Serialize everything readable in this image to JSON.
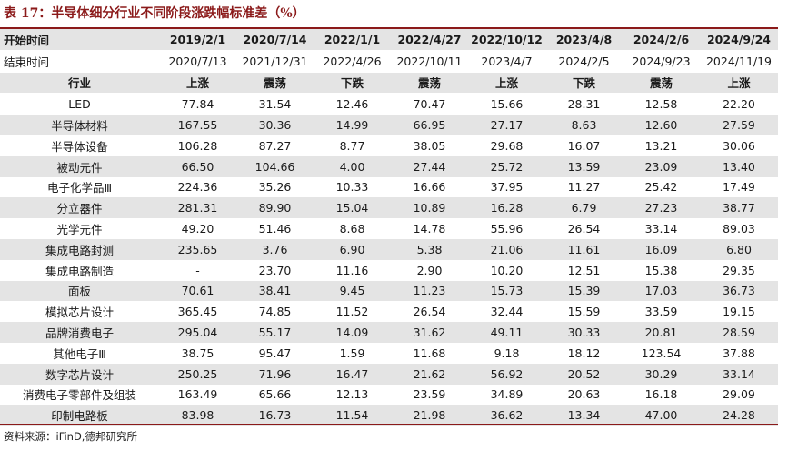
{
  "title": "表 17：半导体细分行业不同阶段涨跌幅标准差（%）",
  "columns": [
    {
      "start": "2019/2/1",
      "end": "2020/7/13",
      "trend": "上涨"
    },
    {
      "start": "2020/7/14",
      "end": "2021/12/31",
      "trend": "震荡"
    },
    {
      "start": "2022/1/1",
      "end": "2022/4/26",
      "trend": "下跌"
    },
    {
      "start": "2022/4/27",
      "end": "2022/10/11",
      "trend": "震荡"
    },
    {
      "start": "2022/10/12",
      "end": "2023/4/7",
      "trend": "上涨"
    },
    {
      "start": "2023/4/8",
      "end": "2024/2/5",
      "trend": "下跌"
    },
    {
      "start": "2024/2/6",
      "end": "2024/9/23",
      "trend": "震荡"
    },
    {
      "start": "2024/9/24",
      "end": "2024/11/19",
      "trend": "上涨"
    }
  ],
  "row_labels": {
    "start": "开始时间",
    "end": "结束时间",
    "industry": "行业"
  },
  "rows": [
    {
      "name": "LED",
      "values": [
        "77.84",
        "31.54",
        "12.46",
        "70.47",
        "15.66",
        "28.31",
        "12.58",
        "22.20"
      ]
    },
    {
      "name": "半导体材料",
      "values": [
        "167.55",
        "30.36",
        "14.99",
        "66.95",
        "27.17",
        "8.63",
        "12.60",
        "27.59"
      ]
    },
    {
      "name": "半导体设备",
      "values": [
        "106.28",
        "87.27",
        "8.77",
        "38.05",
        "29.68",
        "16.07",
        "13.21",
        "30.06"
      ]
    },
    {
      "name": "被动元件",
      "values": [
        "66.50",
        "104.66",
        "4.00",
        "27.44",
        "25.72",
        "13.59",
        "23.09",
        "13.40"
      ]
    },
    {
      "name": "电子化学品Ⅲ",
      "values": [
        "224.36",
        "35.26",
        "10.33",
        "16.66",
        "37.95",
        "11.27",
        "25.42",
        "17.49"
      ]
    },
    {
      "name": "分立器件",
      "values": [
        "281.31",
        "89.90",
        "15.04",
        "10.89",
        "16.28",
        "6.79",
        "27.23",
        "38.77"
      ]
    },
    {
      "name": "光学元件",
      "values": [
        "49.20",
        "51.46",
        "8.68",
        "14.78",
        "55.96",
        "26.54",
        "33.14",
        "89.03"
      ]
    },
    {
      "name": "集成电路封测",
      "values": [
        "235.65",
        "3.76",
        "6.90",
        "5.38",
        "21.06",
        "11.61",
        "16.09",
        "6.80"
      ]
    },
    {
      "name": "集成电路制造",
      "values": [
        "-",
        "23.70",
        "11.16",
        "2.90",
        "10.20",
        "12.51",
        "15.38",
        "29.35"
      ]
    },
    {
      "name": "面板",
      "values": [
        "70.61",
        "38.41",
        "9.45",
        "11.23",
        "15.73",
        "15.39",
        "17.03",
        "36.73"
      ]
    },
    {
      "name": "模拟芯片设计",
      "values": [
        "365.45",
        "74.85",
        "11.52",
        "26.54",
        "32.44",
        "15.59",
        "33.59",
        "19.15"
      ]
    },
    {
      "name": "品牌消费电子",
      "values": [
        "295.04",
        "55.17",
        "14.09",
        "31.62",
        "49.11",
        "30.33",
        "20.81",
        "28.59"
      ]
    },
    {
      "name": "其他电子Ⅲ",
      "values": [
        "38.75",
        "95.47",
        "1.59",
        "11.68",
        "9.18",
        "18.12",
        "123.54",
        "37.88"
      ]
    },
    {
      "name": "数字芯片设计",
      "values": [
        "250.25",
        "71.96",
        "16.47",
        "21.62",
        "56.92",
        "20.52",
        "30.29",
        "33.14"
      ]
    },
    {
      "name": "消费电子零部件及组装",
      "values": [
        "163.49",
        "65.66",
        "12.13",
        "23.59",
        "34.89",
        "20.63",
        "16.18",
        "29.09"
      ]
    },
    {
      "name": "印制电路板",
      "values": [
        "83.98",
        "16.73",
        "11.54",
        "21.98",
        "36.62",
        "13.34",
        "47.00",
        "24.28"
      ]
    }
  ],
  "source": "资料来源：iFinD,德邦研究所",
  "colors": {
    "title": "#8b1a1a",
    "shade": "#e4e4e4"
  }
}
